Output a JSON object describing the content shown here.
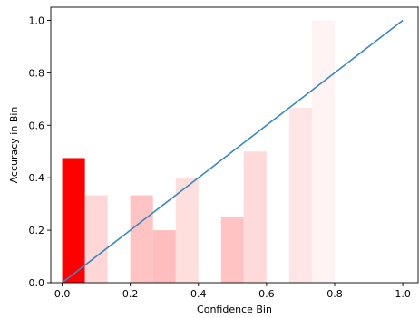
{
  "chart_data": {
    "type": "bar",
    "title": "",
    "xlabel": "Confidence Bin",
    "ylabel": "Accuracy in Bin",
    "xlim": [
      -0.0335,
      1.045
    ],
    "ylim": [
      0,
      1.05
    ],
    "xticks": [
      "0.0",
      "0.2",
      "0.4",
      "0.6",
      "0.8",
      "1.0"
    ],
    "yticks": [
      "0.0",
      "0.2",
      "0.4",
      "0.6",
      "0.8",
      "1.0"
    ],
    "grid": false,
    "legend": "none",
    "bar_width": 0.0667,
    "bars": [
      {
        "x": 0.0333,
        "value": 0.475,
        "color": "#ff0000"
      },
      {
        "x": 0.1,
        "value": 0.333,
        "color": "#ffd7d7"
      },
      {
        "x": 0.2333,
        "value": 0.333,
        "color": "#ffc3c3"
      },
      {
        "x": 0.3,
        "value": 0.2,
        "color": "#ffbdbd"
      },
      {
        "x": 0.3667,
        "value": 0.4,
        "color": "#ffdede"
      },
      {
        "x": 0.5,
        "value": 0.25,
        "color": "#ffc3c3"
      },
      {
        "x": 0.5667,
        "value": 0.5,
        "color": "#ffdada"
      },
      {
        "x": 0.7,
        "value": 0.667,
        "color": "#ffe5e5"
      },
      {
        "x": 0.7667,
        "value": 1.0,
        "color": "#fff3f3"
      }
    ],
    "reference_line": {
      "x": [
        0,
        1
      ],
      "y": [
        0,
        1
      ],
      "color": "#3a87c0"
    }
  }
}
